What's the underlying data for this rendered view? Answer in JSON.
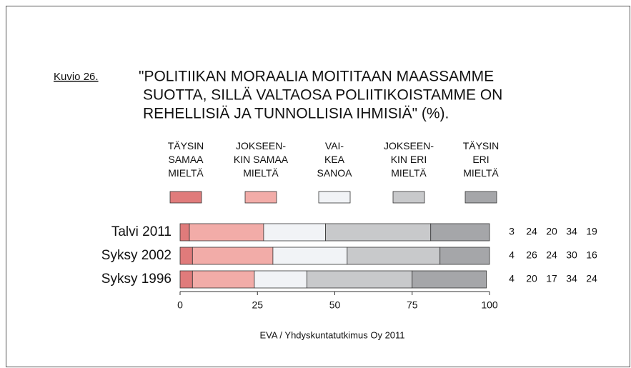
{
  "chart_data": {
    "type": "bar",
    "orientation": "horizontal",
    "stacked": true,
    "figure_label": "Kuvio 26.",
    "title": [
      "\"POLITIIKAN MORAALIA MOITITAAN MAASSAMME",
      "SUOTTA, SILLÄ VALTAOSA POLIITIKOISTAMME ON",
      "REHELLISIÄ JA TUNNOLLISIA IHMISIÄ\" (%)."
    ],
    "categories": [
      "Talvi 2011",
      "Syksy 2002",
      "Syksy 1996"
    ],
    "series": [
      {
        "name": "TÄYSIN\nSAMAA\nMIELTÄ",
        "color": "#e07b7b",
        "values": [
          3,
          4,
          4
        ]
      },
      {
        "name": "JOKSEEN-\nKIN SAMAA\nMIELTÄ",
        "color": "#f2aca8",
        "values": [
          24,
          26,
          20
        ]
      },
      {
        "name": "VAI-\nKEA\nSANOA",
        "color": "#f1f3f6",
        "values": [
          20,
          24,
          17
        ]
      },
      {
        "name": "JOKSEEN-\nKIN ERI\nMIELTÄ",
        "color": "#c8c9cb",
        "values": [
          34,
          30,
          34
        ]
      },
      {
        "name": "TÄYSIN\nERI\nMIELTÄ",
        "color": "#a5a6a9",
        "values": [
          19,
          16,
          24
        ]
      }
    ],
    "xlim": [
      0,
      100
    ],
    "xticks": [
      0,
      25,
      50,
      75,
      100
    ],
    "source": "EVA / Yhdyskuntatutkimus Oy 2011"
  }
}
